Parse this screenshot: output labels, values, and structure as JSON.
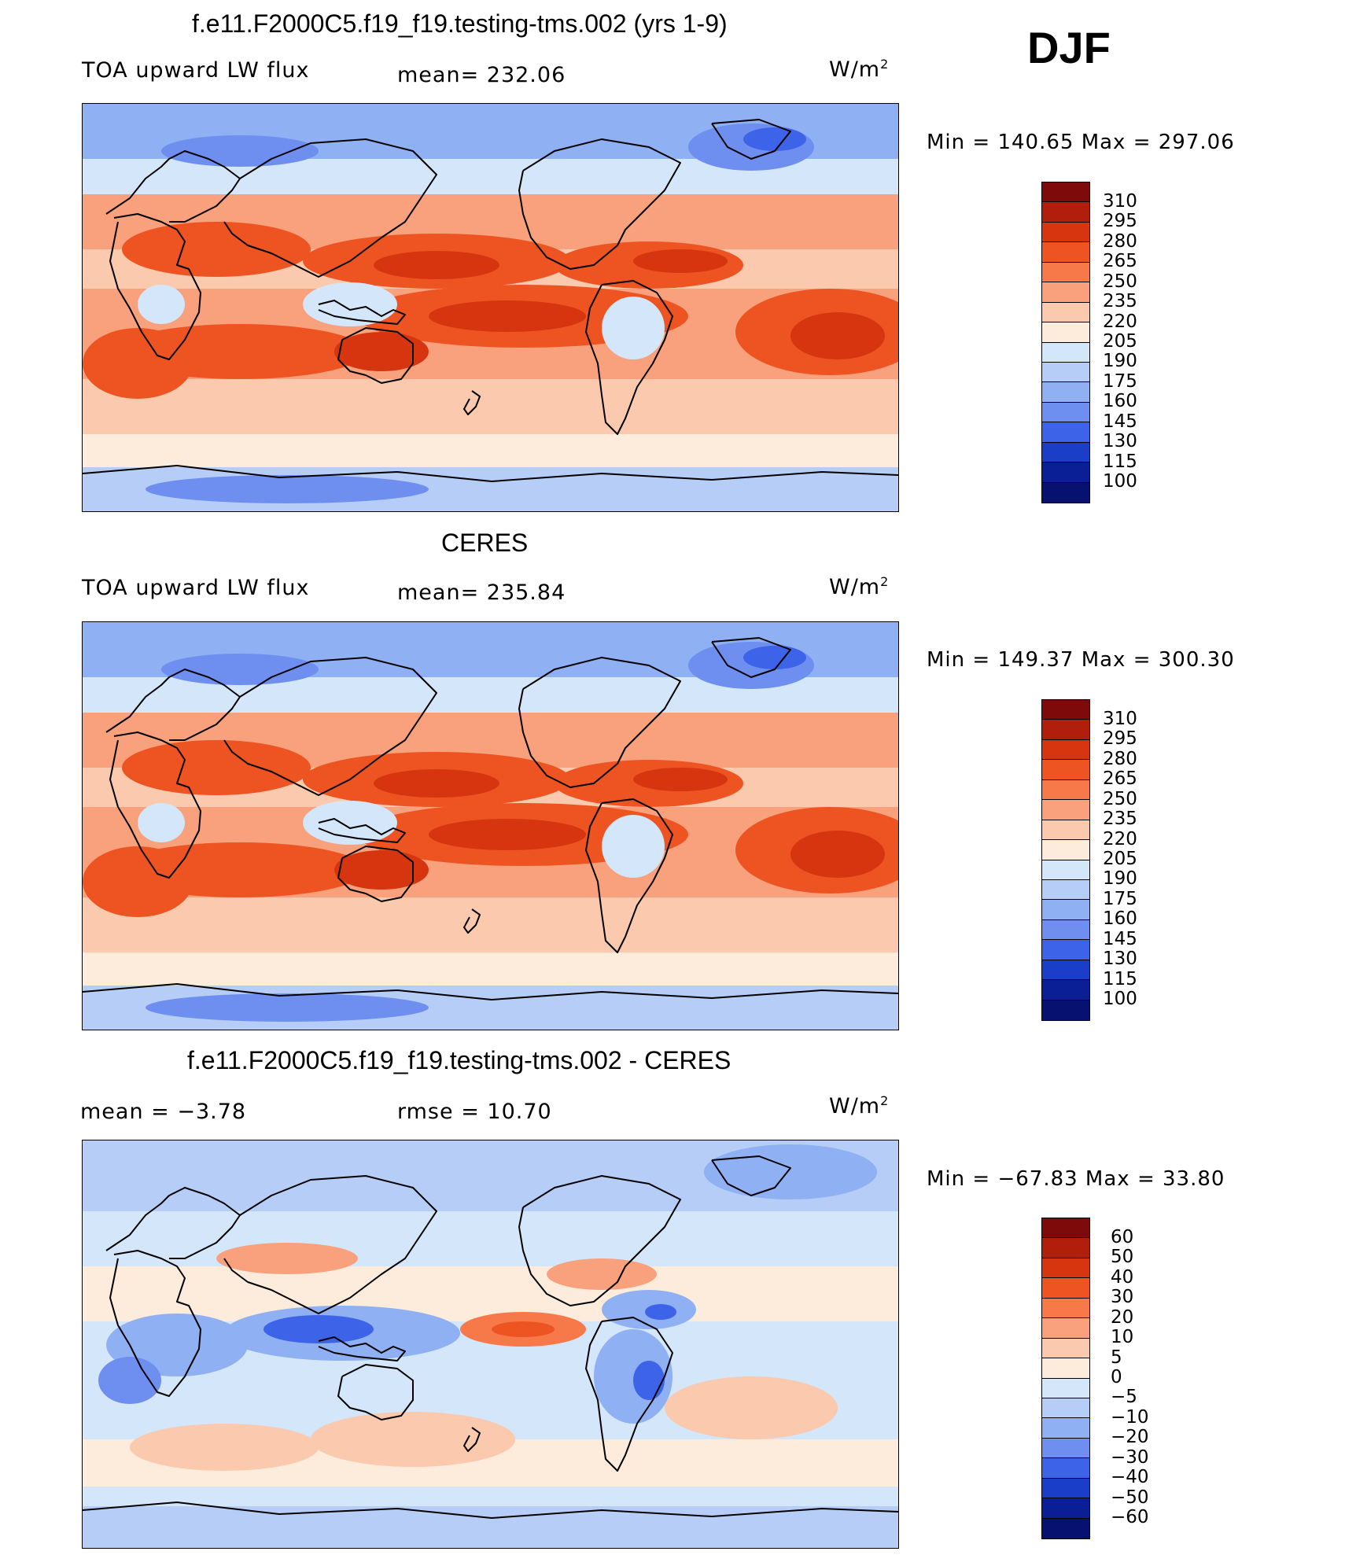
{
  "season": "DJF",
  "units": "W/m",
  "units_sup": "2",
  "field_label": "TOA upward LW flux",
  "chart_data": [
    {
      "type": "heatmap",
      "title": "f.e11.F2000C5.f19_f19.testing-tms.002 (yrs 1-9)",
      "left_label": "TOA upward LW flux",
      "center_label": "mean=  232.06",
      "mean": 232.06,
      "minmax_text": "Min  =  140.65  Max  =  297.06",
      "min": 140.65,
      "max": 297.06,
      "levels": [
        "310",
        "295",
        "280",
        "265",
        "250",
        "235",
        "220",
        "205",
        "190",
        "175",
        "160",
        "145",
        "130",
        "115",
        "100"
      ],
      "colors": [
        "#7f0a0a",
        "#b21e0c",
        "#d63510",
        "#ee5422",
        "#f7794a",
        "#f9a07c",
        "#fbc9ad",
        "#fdecdc",
        "#d4e6fa",
        "#b6cdf7",
        "#8fb0f2",
        "#6e8ff0",
        "#3d63e8",
        "#1b3ec9",
        "#0a1e96",
        "#071170"
      ],
      "field_kind": "model"
    },
    {
      "type": "heatmap",
      "title": "CERES",
      "left_label": "TOA upward LW flux",
      "center_label": "mean=  235.84",
      "mean": 235.84,
      "minmax_text": "Min  =  149.37  Max  =  300.30",
      "min": 149.37,
      "max": 300.3,
      "levels": [
        "310",
        "295",
        "280",
        "265",
        "250",
        "235",
        "220",
        "205",
        "190",
        "175",
        "160",
        "145",
        "130",
        "115",
        "100"
      ],
      "colors": [
        "#7f0a0a",
        "#b21e0c",
        "#d63510",
        "#ee5422",
        "#f7794a",
        "#f9a07c",
        "#fbc9ad",
        "#fdecdc",
        "#d4e6fa",
        "#b6cdf7",
        "#8fb0f2",
        "#6e8ff0",
        "#3d63e8",
        "#1b3ec9",
        "#0a1e96",
        "#071170"
      ],
      "field_kind": "obs"
    },
    {
      "type": "heatmap",
      "title": "f.e11.F2000C5.f19_f19.testing-tms.002 - CERES",
      "left_label": "mean  =     −3.78",
      "center_label": "rmse  =     10.70",
      "mean": -3.78,
      "rmse": 10.7,
      "minmax_text": "Min  =  −67.83  Max  =     33.80",
      "min": -67.83,
      "max": 33.8,
      "levels": [
        "60",
        "50",
        "40",
        "30",
        "20",
        "10",
        "5",
        "0",
        "−5",
        "−10",
        "−20",
        "−30",
        "−40",
        "−50",
        "−60"
      ],
      "colors": [
        "#7f0a0a",
        "#b21e0c",
        "#d63510",
        "#ee5422",
        "#f7794a",
        "#f9a07c",
        "#fbc9ad",
        "#fdecdc",
        "#d4e6fa",
        "#b6cdf7",
        "#8fb0f2",
        "#6e8ff0",
        "#3d63e8",
        "#1b3ec9",
        "#0a1e96",
        "#071170"
      ],
      "field_kind": "diff"
    }
  ]
}
